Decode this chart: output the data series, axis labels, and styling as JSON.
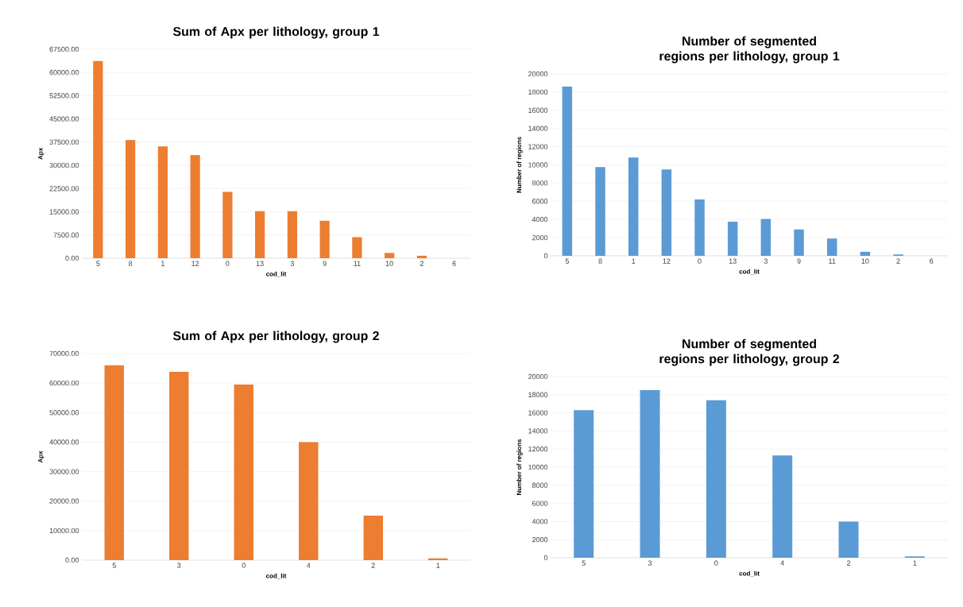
{
  "chart_data": [
    {
      "type": "bar",
      "title": "Sum of Apx per lithology, group 1",
      "xlabel": "cod_lit",
      "ylabel": "Apx",
      "categories": [
        "5",
        "8",
        "1",
        "12",
        "0",
        "13",
        "3",
        "9",
        "11",
        "10",
        "2",
        "6"
      ],
      "values": [
        63700,
        38200,
        36100,
        33300,
        21400,
        15200,
        15200,
        12100,
        6800,
        1700,
        800,
        0
      ],
      "color": "#ed7d31",
      "ylim": [
        0,
        67500
      ],
      "yticks": [
        {
          "value": 0,
          "label": "0.00"
        },
        {
          "value": 7500,
          "label": "7500.00"
        },
        {
          "value": 15000,
          "label": "15000.00"
        },
        {
          "value": 22500,
          "label": "22500.00"
        },
        {
          "value": 30000,
          "label": "30000.00"
        },
        {
          "value": 37500,
          "label": "37500.00"
        },
        {
          "value": 45000,
          "label": "45000.00"
        },
        {
          "value": 52500,
          "label": "52500.00"
        },
        {
          "value": 60000,
          "label": "60000.00"
        },
        {
          "value": 67500,
          "label": "67500.00"
        }
      ],
      "grid": "y"
    },
    {
      "type": "bar",
      "title": "Number of segmented regions per lithology, group 1",
      "xlabel": "cod_lit",
      "ylabel": "Number of regions",
      "categories": [
        "5",
        "8",
        "1",
        "12",
        "0",
        "13",
        "3",
        "9",
        "11",
        "10",
        "2",
        "6"
      ],
      "values": [
        18600,
        9750,
        10800,
        9500,
        6200,
        3750,
        4050,
        2900,
        1900,
        450,
        150,
        0
      ],
      "color": "#5b9bd5",
      "ylim": [
        0,
        20000
      ],
      "yticks": [
        0,
        2000,
        4000,
        6000,
        8000,
        10000,
        12000,
        14000,
        16000,
        18000,
        20000
      ],
      "grid": "y"
    },
    {
      "type": "bar",
      "title": "Sum of Apx per lithology, group 2",
      "xlabel": "cod_lit",
      "ylabel": "Apx",
      "categories": [
        "5",
        "3",
        "0",
        "4",
        "2",
        "1"
      ],
      "values": [
        66000,
        63800,
        59500,
        40000,
        15100,
        600
      ],
      "color": "#ed7d31",
      "ylim": [
        0,
        70000
      ],
      "yticks": [
        {
          "value": 0,
          "label": "0.00"
        },
        {
          "value": 10000,
          "label": "10000.00"
        },
        {
          "value": 20000,
          "label": "20000.00"
        },
        {
          "value": 30000,
          "label": "30000.00"
        },
        {
          "value": 40000,
          "label": "40000.00"
        },
        {
          "value": 50000,
          "label": "50000.00"
        },
        {
          "value": 60000,
          "label": "60000.00"
        },
        {
          "value": 70000,
          "label": "70000.00"
        }
      ],
      "grid": "y"
    },
    {
      "type": "bar",
      "title": "Number of segmented regions per lithology, group 2",
      "xlabel": "cod_lit",
      "ylabel": "Number of regions",
      "categories": [
        "5",
        "3",
        "0",
        "4",
        "2",
        "1"
      ],
      "values": [
        16300,
        18500,
        17400,
        11300,
        4000,
        150
      ],
      "color": "#5b9bd5",
      "ylim": [
        0,
        20000
      ],
      "yticks": [
        0,
        2000,
        4000,
        6000,
        8000,
        10000,
        12000,
        14000,
        16000,
        18000,
        20000
      ],
      "grid": "y"
    }
  ]
}
